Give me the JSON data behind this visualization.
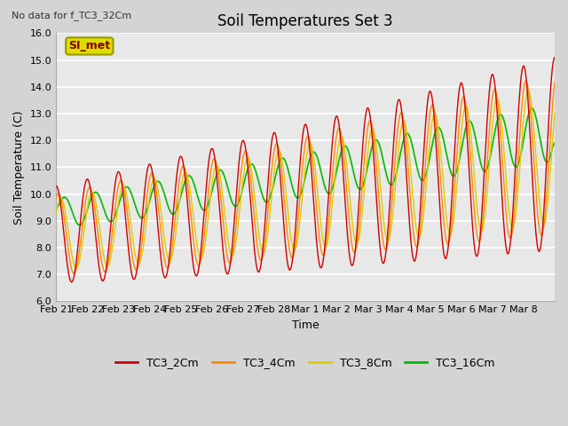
{
  "title": "Soil Temperatures Set 3",
  "subtitle": "No data for f_TC3_32Cm",
  "xlabel": "Time",
  "ylabel": "Soil Temperature (C)",
  "ylim": [
    6.0,
    16.0
  ],
  "yticks": [
    6.0,
    7.0,
    8.0,
    9.0,
    10.0,
    11.0,
    12.0,
    13.0,
    14.0,
    15.0,
    16.0
  ],
  "fig_bg": "#d4d4d4",
  "plot_bg": "#e8e8e8",
  "grid_color": "#ffffff",
  "series": {
    "TC3_2Cm": {
      "color": "#cc0000",
      "lw": 1.0
    },
    "TC3_4Cm": {
      "color": "#ff8800",
      "lw": 1.0
    },
    "TC3_8Cm": {
      "color": "#ddcc00",
      "lw": 1.0
    },
    "TC3_16Cm": {
      "color": "#00bb00",
      "lw": 1.2
    }
  },
  "xtick_labels": [
    "Feb 21",
    "Feb 22",
    "Feb 23",
    "Feb 24",
    "Feb 25",
    "Feb 26",
    "Feb 27",
    "Feb 28",
    "Mar 1",
    "Mar 2",
    "Mar 3",
    "Mar 4",
    "Mar 5",
    "Mar 6",
    "Mar 7",
    "Mar 8"
  ],
  "annotation_text": "SI_met",
  "annotation_box_color": "#dddd00",
  "annotation_border_color": "#999900"
}
